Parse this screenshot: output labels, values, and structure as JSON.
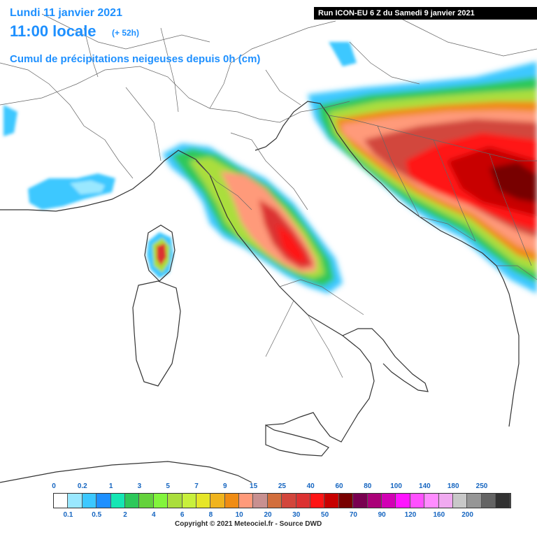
{
  "header": {
    "date": "Lundi 11 janvier 2021",
    "time": "11:00 locale",
    "lead": "(+ 52h)",
    "product": "Cumul de précipitations neigeuses depuis 0h (cm)",
    "run": "Run ICON-EU 6 Z du Samedi 9 janvier 2021"
  },
  "legend": {
    "top_labels": [
      "0",
      "0.2",
      "1",
      "3",
      "5",
      "7",
      "9",
      "15",
      "25",
      "40",
      "60",
      "80",
      "100",
      "140",
      "180",
      "250"
    ],
    "bottom_labels": [
      "0.1",
      "0.5",
      "2",
      "4",
      "6",
      "8",
      "10",
      "20",
      "30",
      "50",
      "70",
      "90",
      "120",
      "160",
      "200"
    ],
    "colors": [
      "#ffffff",
      "#9ae8ff",
      "#3cc8ff",
      "#1e90ff",
      "#14e6b4",
      "#2dc85a",
      "#64d23c",
      "#82f53c",
      "#aade3c",
      "#c8f03c",
      "#e6e628",
      "#f0b41e",
      "#f08c14",
      "#ff9a7a",
      "#c89090",
      "#d26e3c",
      "#d2463c",
      "#dc3232",
      "#ff1414",
      "#c80000",
      "#780000",
      "#780050",
      "#aa0078",
      "#d200b4",
      "#ff14ff",
      "#ff50ff",
      "#ff8cff",
      "#f0aaf0",
      "#c8c8c8",
      "#969696",
      "#646464",
      "#323232"
    ]
  },
  "footer": {
    "copyright": "Copyright © 2021 Meteociel.fr - Source DWD"
  }
}
